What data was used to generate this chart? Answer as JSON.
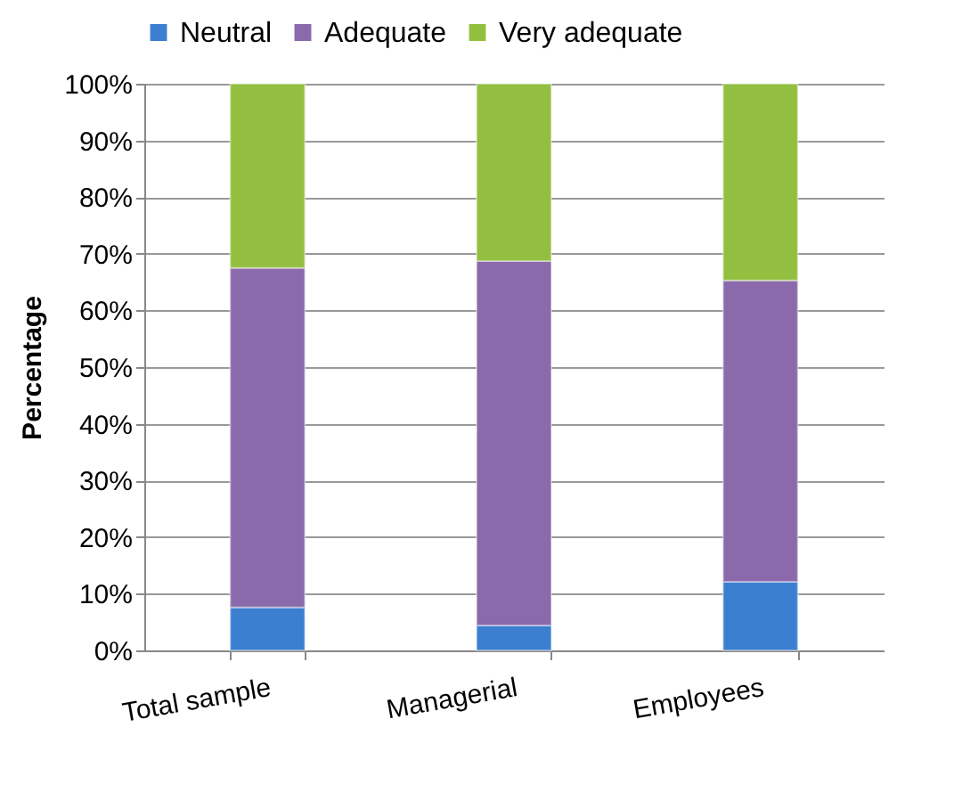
{
  "chart_data": {
    "type": "bar",
    "stacked": true,
    "ylabel": "Percentage",
    "categories": [
      "Total sample",
      "Managerial",
      "Employees"
    ],
    "series": [
      {
        "name": "Neutral",
        "color": "#3c7fd0",
        "values": [
          7.6,
          4.4,
          12.1
        ]
      },
      {
        "name": "Adequate",
        "color": "#8a6aab",
        "values": [
          59.9,
          64.3,
          53.2
        ]
      },
      {
        "name": "Very adequate",
        "color": "#93bf40",
        "values": [
          32.5,
          31.3,
          34.7
        ]
      }
    ],
    "ylim": [
      0,
      100
    ],
    "yticks": [
      {
        "value": 0,
        "label": "0%"
      },
      {
        "value": 10,
        "label": "10%"
      },
      {
        "value": 20,
        "label": "20%"
      },
      {
        "value": 30,
        "label": "30%"
      },
      {
        "value": 40,
        "label": "40%"
      },
      {
        "value": 50,
        "label": "50%"
      },
      {
        "value": 60,
        "label": "60%"
      },
      {
        "value": 70,
        "label": "70%"
      },
      {
        "value": 80,
        "label": "80%"
      },
      {
        "value": 90,
        "label": "90%"
      },
      {
        "value": 100,
        "label": "100%"
      }
    ],
    "grid": "y",
    "legend": "top"
  }
}
